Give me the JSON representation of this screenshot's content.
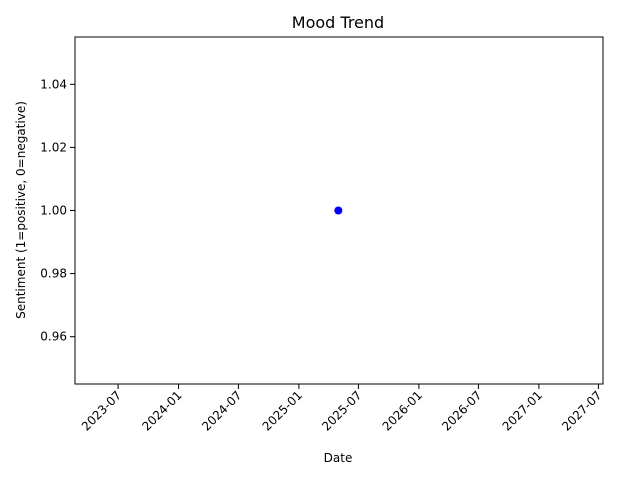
{
  "chart_data": {
    "type": "scatter",
    "title": "Mood Trend",
    "xlabel": "Date",
    "ylabel": "Sentiment (1=positive, 0=negative)",
    "x_type": "date",
    "points": [
      {
        "x": "2025-05-01",
        "y": 1.0
      }
    ],
    "xlim": [
      "2023-02-20",
      "2027-07-15"
    ],
    "ylim": [
      0.945,
      1.055
    ],
    "x_ticks": [
      "2023-07",
      "2024-01",
      "2024-07",
      "2025-01",
      "2025-07",
      "2026-01",
      "2026-07",
      "2027-01",
      "2027-07"
    ],
    "y_ticks": [
      "0.96",
      "0.98",
      "1.00",
      "1.02",
      "1.04"
    ],
    "grid": false,
    "legend": "none",
    "colors": {
      "point": "#0000ff",
      "axes": "#000000",
      "background": "#ffffff"
    }
  }
}
